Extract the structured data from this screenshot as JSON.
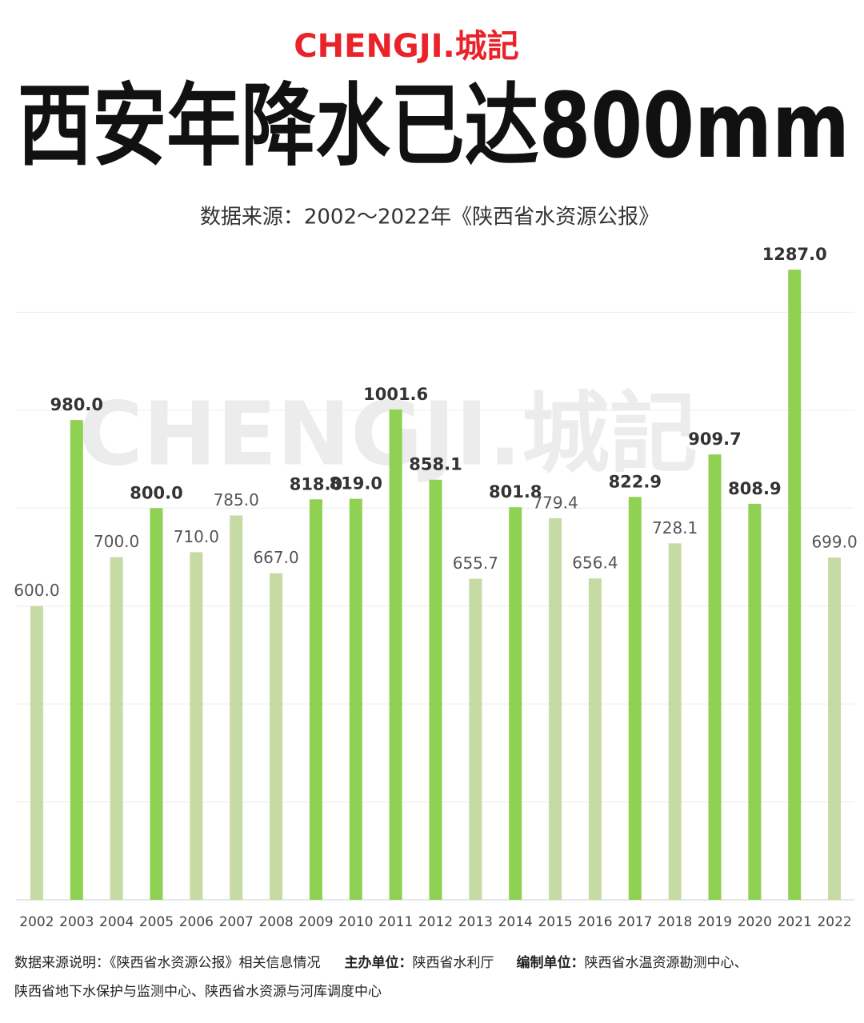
{
  "brand": "CHENGJI.城記",
  "chart_data": {
    "type": "bar",
    "title": "西安年降水已达800mm",
    "subtitle": "数据来源：2002～2022年《陕西省水资源公报》",
    "watermark": "CHENGJI.城記",
    "categories": [
      "2002",
      "2003",
      "2004",
      "2005",
      "2006",
      "2007",
      "2008",
      "2009",
      "2010",
      "2011",
      "2012",
      "2013",
      "2014",
      "2015",
      "2016",
      "2017",
      "2018",
      "2019",
      "2020",
      "2021",
      "2022"
    ],
    "values": [
      600.0,
      980.0,
      700.0,
      800.0,
      710.0,
      785.0,
      667.0,
      818.0,
      819.0,
      1001.6,
      858.1,
      655.7,
      801.8,
      779.4,
      656.4,
      822.9,
      728.1,
      909.7,
      808.9,
      1287.0,
      699.0
    ],
    "value_labels": [
      "600.0",
      "980.0",
      "700.0",
      "800.0",
      "710.0",
      "785.0",
      "667.0",
      "818.0",
      "819.0",
      "1001.6",
      "858.1",
      "655.7",
      "801.8",
      "779.4",
      "656.4",
      "822.9",
      "728.1",
      "909.7",
      "808.9",
      "1287.0",
      "699.0"
    ],
    "color": "#c6dba3",
    "colors": [
      "#c6dba3",
      "#8fd152",
      "#c6dba3",
      "#8fd152",
      "#c6dba3",
      "#c6dba3",
      "#c6dba3",
      "#8fd152",
      "#8fd152",
      "#8fd152",
      "#8fd152",
      "#c6dba3",
      "#8fd152",
      "#c6dba3",
      "#c6dba3",
      "#8fd152",
      "#c6dba3",
      "#8fd152",
      "#8fd152",
      "#8fd152",
      "#c6dba3"
    ],
    "ylim": [
      0,
      1400
    ],
    "yticks": [
      0,
      200,
      400,
      600,
      800,
      1000,
      1200
    ],
    "grid": true
  },
  "footer": {
    "line1": [
      {
        "text": "数据来源说明：《陕西省水资源公报》相关信息情况",
        "bold": false
      },
      {
        "text": "主办单位：",
        "bold": true
      },
      {
        "text": "陕西省水利厅",
        "bold": false
      },
      {
        "text": "编制单位：",
        "bold": true
      },
      {
        "text": "陕西省水温资源勘测中心、",
        "bold": false
      }
    ],
    "line2": "陕西省地下水保护与监测中心、陕西省水资源与河库调度中心"
  }
}
